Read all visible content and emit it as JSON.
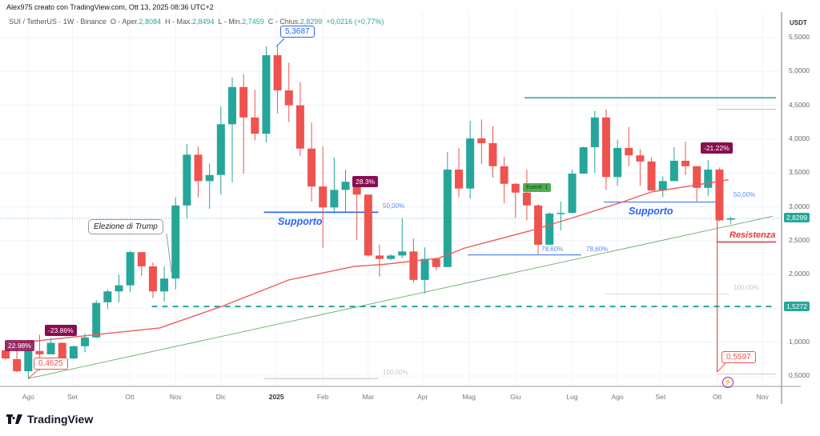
{
  "credit": "Alex975 creato con TradingView.com, Ott 13, 2025 08:36 UTC+2",
  "legend": {
    "symbol": "SUI / TetherUS · 1W · Binance",
    "open_label": "O - Aper.",
    "open": "2,8084",
    "high_label": "H - Max.",
    "high": "2,8494",
    "low_label": "L - Min.",
    "low": "2,7459",
    "close_label": "C - Chius.",
    "close": "2,8299",
    "change": "+0,0216 (+0,77%)"
  },
  "axis": {
    "currency": "USDT",
    "y_ticks": [
      "5,5000",
      "5,0000",
      "4,5000",
      "4,0000",
      "3,5000",
      "3,0000",
      "2,5000",
      "2,0000",
      "1,0000",
      "0,5000"
    ],
    "y_values": [
      5.5,
      5.0,
      4.5,
      4.0,
      3.5,
      3.0,
      2.5,
      2.0,
      1.0,
      0.5
    ],
    "current_price": "2,8299",
    "level_price": "1,5272",
    "x_ticks": [
      {
        "label": "Ago",
        "i": 2.0
      },
      {
        "label": "Set",
        "i": 5.9
      },
      {
        "label": "Ott",
        "i": 10.95
      },
      {
        "label": "Nov",
        "i": 15.0
      },
      {
        "label": "Dic",
        "i": 19.0
      },
      {
        "label": "2025",
        "i": 23.9,
        "year": true
      },
      {
        "label": "Feb",
        "i": 28.0
      },
      {
        "label": "Mar",
        "i": 32.0
      },
      {
        "label": "Apr",
        "i": 36.8
      },
      {
        "label": "Mag",
        "i": 40.9
      },
      {
        "label": "Giu",
        "i": 45.0
      },
      {
        "label": "Lug",
        "i": 50.0
      },
      {
        "label": "Ago",
        "i": 54.0
      },
      {
        "label": "Set",
        "i": 57.8
      },
      {
        "label": "Ott",
        "i": 62.8
      },
      {
        "label": "Nov",
        "i": 66.8
      }
    ]
  },
  "colors": {
    "up": "#26a69a",
    "down": "#ef5350",
    "ma": "#f05a5a",
    "trend": "#6aaa64",
    "support": "#2962ff",
    "resist": "#e53935",
    "grid": "#f0f3fa"
  },
  "candles": [
    [
      0.88,
      0.95,
      0.74,
      0.76
    ],
    [
      0.75,
      0.97,
      0.56,
      0.57
    ],
    [
      0.57,
      0.92,
      0.46,
      0.87
    ],
    [
      0.87,
      1.11,
      0.58,
      0.82
    ],
    [
      0.82,
      1.06,
      0.82,
      0.99
    ],
    [
      0.99,
      1.0,
      0.75,
      0.76
    ],
    [
      0.76,
      0.95,
      0.75,
      0.94
    ],
    [
      0.94,
      1.13,
      0.85,
      1.07
    ],
    [
      1.07,
      1.62,
      1.06,
      1.58
    ],
    [
      1.59,
      1.78,
      1.49,
      1.75
    ],
    [
      1.75,
      2.0,
      1.59,
      1.84
    ],
    [
      1.84,
      2.35,
      1.74,
      2.33
    ],
    [
      2.33,
      2.33,
      1.98,
      2.12
    ],
    [
      2.12,
      2.18,
      1.65,
      1.75
    ],
    [
      1.75,
      2.12,
      1.6,
      1.94
    ],
    [
      1.94,
      3.14,
      1.78,
      3.02
    ],
    [
      3.02,
      3.93,
      2.83,
      3.77
    ],
    [
      3.77,
      3.89,
      3.14,
      3.38
    ],
    [
      3.38,
      3.64,
      2.97,
      3.47
    ],
    [
      3.47,
      4.48,
      3.18,
      4.22
    ],
    [
      4.22,
      4.91,
      3.36,
      4.77
    ],
    [
      4.77,
      4.96,
      3.49,
      4.32
    ],
    [
      4.32,
      4.73,
      3.98,
      4.08
    ],
    [
      4.08,
      5.37,
      3.95,
      5.24
    ],
    [
      5.24,
      5.37,
      4.38,
      4.72
    ],
    [
      4.72,
      5.13,
      4.25,
      4.5
    ],
    [
      4.5,
      4.84,
      3.75,
      3.86
    ],
    [
      3.86,
      4.25,
      3.08,
      3.3
    ],
    [
      3.3,
      3.89,
      2.39,
      2.99
    ],
    [
      2.99,
      3.73,
      2.9,
      3.25
    ],
    [
      3.25,
      3.55,
      2.92,
      3.37
    ],
    [
      3.37,
      3.37,
      2.51,
      3.18
    ],
    [
      3.18,
      3.18,
      2.26,
      2.28
    ],
    [
      2.28,
      2.44,
      1.97,
      2.23
    ],
    [
      2.23,
      2.3,
      2.21,
      2.28
    ],
    [
      2.28,
      2.83,
      2.24,
      2.34
    ],
    [
      2.34,
      2.53,
      1.88,
      1.92
    ],
    [
      1.92,
      2.4,
      1.72,
      2.23
    ],
    [
      2.23,
      2.24,
      2.06,
      2.11
    ],
    [
      2.11,
      3.81,
      2.11,
      3.55
    ],
    [
      3.55,
      3.87,
      3.14,
      3.27
    ],
    [
      3.27,
      4.27,
      3.12,
      4.01
    ],
    [
      4.01,
      4.29,
      3.63,
      3.94
    ],
    [
      3.94,
      4.19,
      3.43,
      3.6
    ],
    [
      3.6,
      3.74,
      3.05,
      3.34
    ],
    [
      3.34,
      3.35,
      2.84,
      3.21
    ],
    [
      3.21,
      3.55,
      2.8,
      3.02
    ],
    [
      3.02,
      3.04,
      2.3,
      2.44
    ],
    [
      2.44,
      2.92,
      2.44,
      2.9
    ],
    [
      2.9,
      3.08,
      2.65,
      2.91
    ],
    [
      2.91,
      3.55,
      2.9,
      3.49
    ],
    [
      3.49,
      3.89,
      3.49,
      3.88
    ],
    [
      3.88,
      4.42,
      3.5,
      4.32
    ],
    [
      4.32,
      4.44,
      3.25,
      3.44
    ],
    [
      3.44,
      3.99,
      3.31,
      3.87
    ],
    [
      3.87,
      4.18,
      3.6,
      3.76
    ],
    [
      3.76,
      3.85,
      3.31,
      3.67
    ],
    [
      3.67,
      3.73,
      3.24,
      3.24
    ],
    [
      3.24,
      3.45,
      3.14,
      3.38
    ],
    [
      3.38,
      3.88,
      3.38,
      3.68
    ],
    [
      3.68,
      3.96,
      3.47,
      3.6
    ],
    [
      3.6,
      3.6,
      3.08,
      3.28
    ],
    [
      3.28,
      3.69,
      3.16,
      3.55
    ],
    [
      3.55,
      3.58,
      2.78,
      2.8
    ],
    [
      2.81,
      2.85,
      2.75,
      2.83
    ]
  ],
  "ma": [
    [
      0,
      0.97
    ],
    [
      13.6,
      1.21
    ],
    [
      19.1,
      1.53
    ],
    [
      25,
      1.92
    ],
    [
      30.8,
      2.12
    ],
    [
      33.4,
      2.15
    ],
    [
      38.2,
      2.24
    ],
    [
      40.5,
      2.39
    ],
    [
      46.4,
      2.65
    ],
    [
      49.9,
      2.83
    ],
    [
      54.6,
      3.08
    ],
    [
      57,
      3.22
    ],
    [
      60.5,
      3.31
    ],
    [
      63.8,
      3.4
    ]
  ],
  "levels": {
    "trend": [
      [
        2,
        0.4625
      ],
      [
        67.7,
        2.86
      ]
    ],
    "teal_top": {
      "from": 45.8,
      "to": 68,
      "price": 4.61
    },
    "gray_top": {
      "from": 62.8,
      "to": 68,
      "price": 4.44
    },
    "dashed": {
      "from": 12.9,
      "to": 68,
      "price": 1.5272
    },
    "support1": {
      "from": 22.8,
      "to": 32.9,
      "price": 2.92
    },
    "support2": {
      "from": 40.8,
      "to": 50.8,
      "price": 2.29
    },
    "support3": {
      "from": 52.8,
      "to": 62.8,
      "price": 3.07
    },
    "resist": {
      "from": 62.8,
      "to": 68,
      "price": 2.48
    },
    "fib100a": {
      "from": 22.8,
      "to": 32.9,
      "price": 0.46
    },
    "fib100b": {
      "from": 52.8,
      "to": 63.8,
      "price": 1.71
    },
    "gray_bottom": {
      "from": 62.8,
      "to": 68,
      "price": 0.53
    },
    "drop_line": {
      "i": 62.8,
      "from": 3.55,
      "to": 0.5597
    }
  },
  "annotations": {
    "high_callout": "5,3687",
    "low_callout": "0,4625",
    "drop_callout": "0,5597",
    "pct_left": "22.98%",
    "pct_mid": "-23.86%",
    "pct_feb": "28.3%",
    "pct_right": "-21.22%",
    "events": "Eventi: 1",
    "fib50_a": "50,00%",
    "fib50_b": "50,00%",
    "fib786_a": "78,60%",
    "fib786_b": "78,60%",
    "fib100_a": "100,00%",
    "fib100_b": "100,00%",
    "support_a": "Supporto",
    "support_b": "Supporto",
    "resist": "Resistenza",
    "trump": "Elezione di Trump"
  },
  "brand": "TradingView"
}
